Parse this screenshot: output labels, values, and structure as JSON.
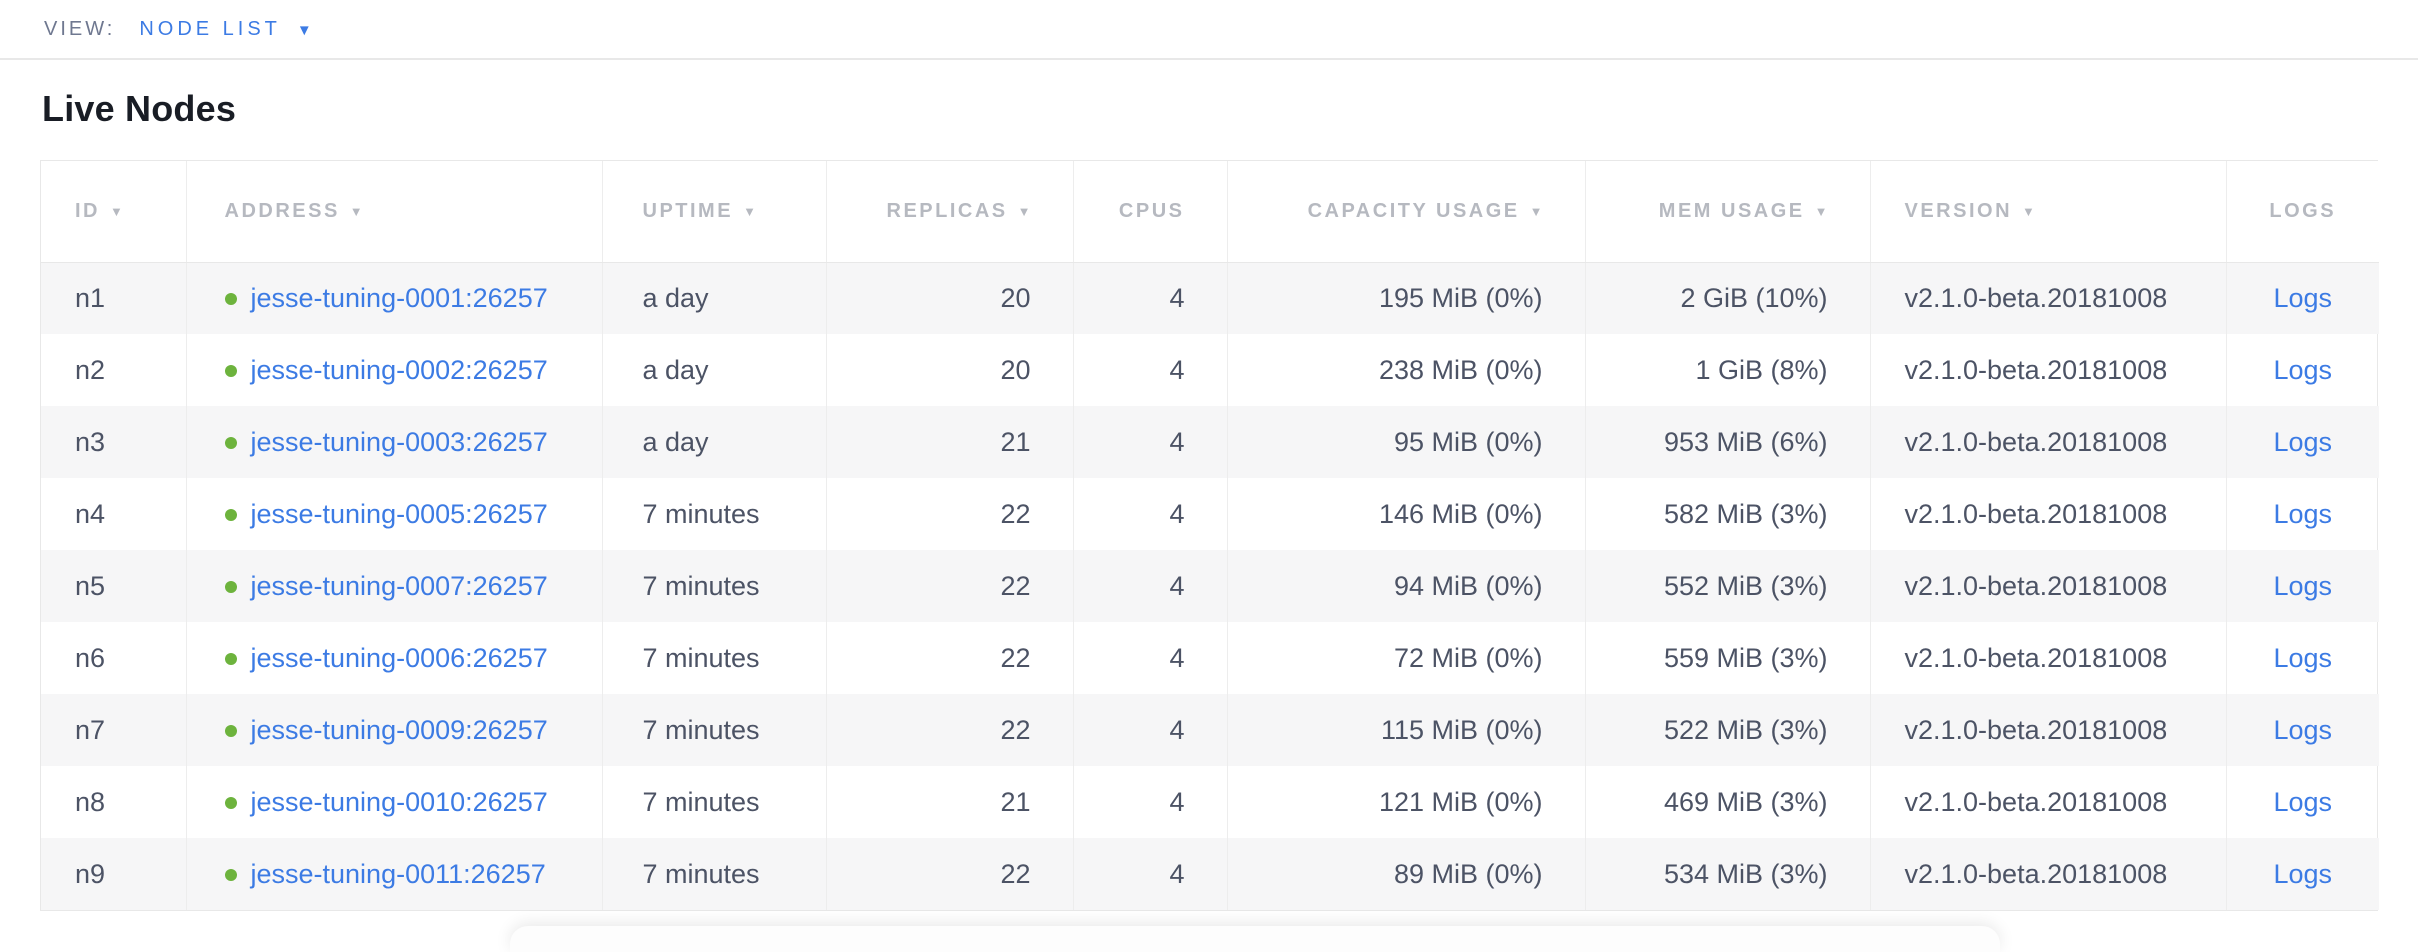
{
  "view_bar": {
    "label": "VIEW:",
    "selected": "NODE LIST",
    "caret": "▼"
  },
  "page": {
    "title": "Live Nodes"
  },
  "table": {
    "sort_indicator": "▼",
    "columns": [
      {
        "key": "id",
        "label": "ID",
        "sortable": true,
        "align": "left",
        "pad": "pad-id"
      },
      {
        "key": "address",
        "label": "ADDRESS",
        "sortable": true,
        "align": "left",
        "pad": "pad-address"
      },
      {
        "key": "uptime",
        "label": "UPTIME",
        "sortable": true,
        "align": "left",
        "pad": "pad-uptime"
      },
      {
        "key": "replicas",
        "label": "REPLICAS",
        "sortable": true,
        "align": "right",
        "pad": "pad-num"
      },
      {
        "key": "cpus",
        "label": "CPUS",
        "sortable": false,
        "align": "right",
        "pad": "pad-num"
      },
      {
        "key": "capacity",
        "label": "CAPACITY USAGE",
        "sortable": true,
        "align": "right",
        "pad": "pad-num"
      },
      {
        "key": "mem",
        "label": "MEM USAGE",
        "sortable": true,
        "align": "right",
        "pad": "pad-num"
      },
      {
        "key": "version",
        "label": "VERSION",
        "sortable": true,
        "align": "left",
        "pad": "pad-version"
      },
      {
        "key": "logs",
        "label": "LOGS",
        "sortable": false,
        "align": "center",
        "pad": ""
      }
    ],
    "rows": [
      {
        "id": "n1",
        "address": "jesse-tuning-0001:26257",
        "uptime": "a day",
        "replicas": "20",
        "cpus": "4",
        "capacity": "195 MiB (0%)",
        "mem": "2 GiB (10%)",
        "version": "v2.1.0-beta.20181008",
        "logs": "Logs"
      },
      {
        "id": "n2",
        "address": "jesse-tuning-0002:26257",
        "uptime": "a day",
        "replicas": "20",
        "cpus": "4",
        "capacity": "238 MiB (0%)",
        "mem": "1 GiB (8%)",
        "version": "v2.1.0-beta.20181008",
        "logs": "Logs"
      },
      {
        "id": "n3",
        "address": "jesse-tuning-0003:26257",
        "uptime": "a day",
        "replicas": "21",
        "cpus": "4",
        "capacity": "95 MiB (0%)",
        "mem": "953 MiB (6%)",
        "version": "v2.1.0-beta.20181008",
        "logs": "Logs"
      },
      {
        "id": "n4",
        "address": "jesse-tuning-0005:26257",
        "uptime": "7 minutes",
        "replicas": "22",
        "cpus": "4",
        "capacity": "146 MiB (0%)",
        "mem": "582 MiB (3%)",
        "version": "v2.1.0-beta.20181008",
        "logs": "Logs"
      },
      {
        "id": "n5",
        "address": "jesse-tuning-0007:26257",
        "uptime": "7 minutes",
        "replicas": "22",
        "cpus": "4",
        "capacity": "94 MiB (0%)",
        "mem": "552 MiB (3%)",
        "version": "v2.1.0-beta.20181008",
        "logs": "Logs"
      },
      {
        "id": "n6",
        "address": "jesse-tuning-0006:26257",
        "uptime": "7 minutes",
        "replicas": "22",
        "cpus": "4",
        "capacity": "72 MiB (0%)",
        "mem": "559 MiB (3%)",
        "version": "v2.1.0-beta.20181008",
        "logs": "Logs"
      },
      {
        "id": "n7",
        "address": "jesse-tuning-0009:26257",
        "uptime": "7 minutes",
        "replicas": "22",
        "cpus": "4",
        "capacity": "115 MiB (0%)",
        "mem": "522 MiB (3%)",
        "version": "v2.1.0-beta.20181008",
        "logs": "Logs"
      },
      {
        "id": "n8",
        "address": "jesse-tuning-0010:26257",
        "uptime": "7 minutes",
        "replicas": "21",
        "cpus": "4",
        "capacity": "121 MiB (0%)",
        "mem": "469 MiB (3%)",
        "version": "v2.1.0-beta.20181008",
        "logs": "Logs"
      },
      {
        "id": "n9",
        "address": "jesse-tuning-0011:26257",
        "uptime": "7 minutes",
        "replicas": "22",
        "cpus": "4",
        "capacity": "89 MiB (0%)",
        "mem": "534 MiB (3%)",
        "version": "v2.1.0-beta.20181008",
        "logs": "Logs"
      }
    ]
  },
  "icons": {
    "node_status_dot": "green-status-dot-icon",
    "dropdown_caret": "chevron-down-icon"
  },
  "colors": {
    "accent_blue": "#3c7be4",
    "status_green": "#6db33d",
    "header_gray": "#b6b9c0",
    "text_slate": "#4c5365",
    "row_stripe": "#f6f6f7",
    "border_gray": "#e8e8e8"
  }
}
